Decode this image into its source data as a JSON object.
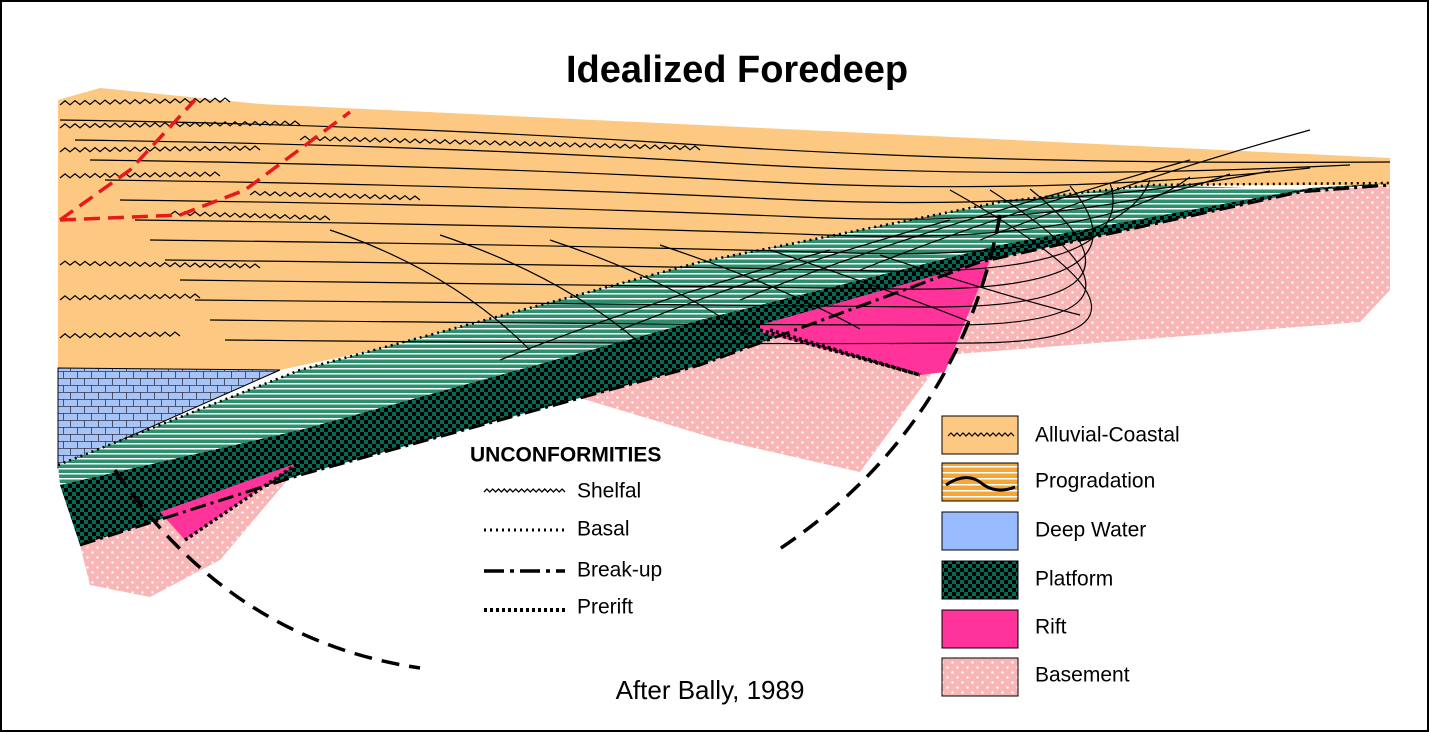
{
  "title": "Idealized Foredeep",
  "legend": [
    {
      "label": "Alluvial-Coastal"
    },
    {
      "label": "Progradation"
    },
    {
      "label": "Deep Water"
    },
    {
      "label": "Platform"
    },
    {
      "label": "Rift"
    },
    {
      "label": "Basement"
    }
  ],
  "unconformities": {
    "title": "UNCONFORMITIES",
    "items": [
      {
        "label": "Shelfal"
      },
      {
        "label": "Basal"
      },
      {
        "label": "Break-up"
      },
      {
        "label": "Prerift"
      }
    ]
  },
  "credit": "After Bally, 1989"
}
